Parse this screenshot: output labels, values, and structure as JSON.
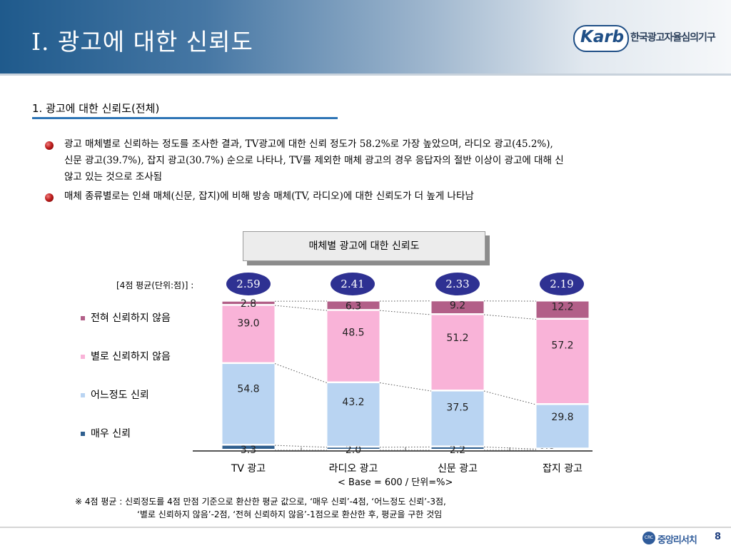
{
  "header": {
    "title": "Ⅰ. 광고에 대한 신뢰도",
    "logo_mark": "Karb",
    "logo_text": "한국광고자율심의기구"
  },
  "section": {
    "title": "1. 광고에 대한 신뢰도(전체)"
  },
  "bullets": [
    {
      "lines": [
        "광고 매체별로 신뢰하는 정도를 조사한 결과, TV광고에 대한 신뢰 정도가 58.2%로 가장 높았으며, 라디오 광고(45.2%),",
        "신문 광고(39.7%), 잡지 광고(30.7%) 순으로 나타나, TV를 제외한 매체 광고의 경우 응답자의 절반 이상이 광고에 대해 신",
        "않고 있는 것으로 조사됨"
      ]
    },
    {
      "lines": [
        "매체 종류별로는 인쇄 매체(신문, 잡지)에 비해 방송 매체(TV, 라디오)에 대한 신뢰도가 더 높게 나타남"
      ]
    }
  ],
  "chart_data": {
    "type": "bar",
    "stacked": true,
    "title": "매체별 광고에 대한 신뢰도",
    "categories": [
      "TV 광고",
      "라디오 광고",
      "신문 광고",
      "잡지 광고"
    ],
    "series": [
      {
        "name": "매우 신뢰",
        "values": [
          3.3,
          2.0,
          2.2,
          0.8
        ],
        "color": "#2f5f8f"
      },
      {
        "name": "어느정도 신뢰",
        "values": [
          54.8,
          43.2,
          37.5,
          29.8
        ],
        "color": "#b9d4f2"
      },
      {
        "name": "별로 신뢰하지 않음",
        "values": [
          39.0,
          48.5,
          51.2,
          57.2
        ],
        "color": "#f9b3d8"
      },
      {
        "name": "전혀 신뢰하지 않음",
        "values": [
          2.8,
          6.3,
          9.2,
          12.2
        ],
        "color": "#b25f88"
      }
    ],
    "avg_label": "[4점 평균(단위:점)] :",
    "averages": [
      "2.59",
      "2.41",
      "2.33",
      "2.19"
    ],
    "ylim": [
      0,
      100
    ],
    "note": "< Base = 600 / 단위=%>"
  },
  "footnote": {
    "line1": "※ 4점 평균 : 신뢰정도를 4점 만점 기준으로 환산한 평균 값으로, ‘매우 신뢰’-4점, ‘어느정도 신뢰’-3점,",
    "line2": "‘별로 신뢰하지 않음’-2점, ‘전혀 신뢰하지 않음’-1점으로 환산한 후, 평균을 구한 것임"
  },
  "footer": {
    "brand": "중앙리서치",
    "brand_mark": "CRC",
    "page": "8"
  }
}
